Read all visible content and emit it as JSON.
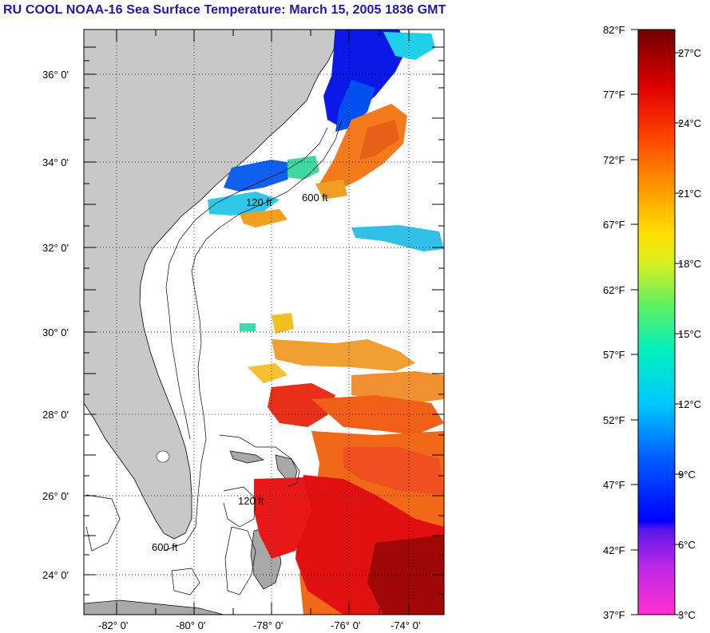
{
  "title": "RU COOL  NOAA-16  Sea Surface Temperature:  March 15, 2005 1836 GMT",
  "map": {
    "lat_labels": [
      "36° 0'",
      "34° 0'",
      "32° 0'",
      "30° 0'",
      "28° 0'",
      "26° 0'",
      "24° 0'"
    ],
    "lon_labels": [
      "-82° 0'",
      "-80° 0'",
      "-78° 0'",
      "-76° 0'",
      "-74° 0'"
    ],
    "contour_labels": [
      "600 ft",
      "120 ft"
    ],
    "colors": {
      "land": "#c8c8c8",
      "cloud_nodata": "#ffffff",
      "warm_water": "#d81010",
      "orange_water": "#f07820",
      "cool_water": "#1040d8"
    }
  },
  "colorbar": {
    "fahrenheit_labels": [
      "82°F",
      "77°F",
      "72°F",
      "67°F",
      "62°F",
      "57°F",
      "52°F",
      "47°F",
      "42°F",
      "37°F"
    ],
    "celsius_labels": [
      "27°C",
      "24°C",
      "21°C",
      "18°C",
      "15°C",
      "12°C",
      "9°C",
      "6°C",
      "3°C"
    ],
    "range_f": [
      37,
      82
    ],
    "range_c": [
      3,
      28
    ]
  }
}
